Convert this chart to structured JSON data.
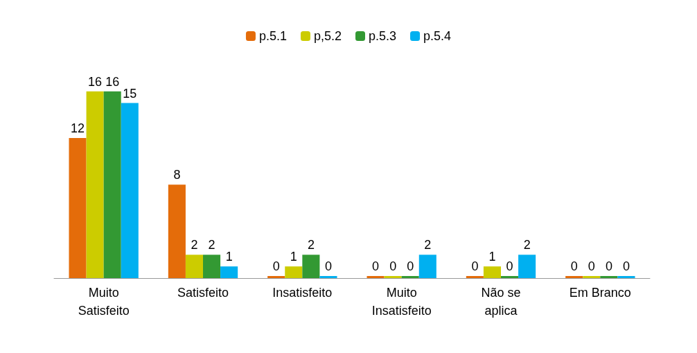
{
  "chart_data": {
    "type": "bar",
    "categories": [
      "Muito\nSatisfeito",
      "Satisfeito",
      "Insatisfeito",
      "Muito\nInsatisfeito",
      "Não se\naplica",
      "Em Branco"
    ],
    "series": [
      {
        "name": "p.5.1",
        "color": "#e46c0a",
        "values": [
          12,
          8,
          0,
          0,
          0,
          0
        ]
      },
      {
        "name": "p,5.2",
        "color": "#cccc00",
        "values": [
          16,
          2,
          1,
          0,
          1,
          0
        ]
      },
      {
        "name": "p.5.3",
        "color": "#339933",
        "values": [
          16,
          2,
          2,
          0,
          0,
          0
        ]
      },
      {
        "name": "p.5.4",
        "color": "#00b0f0",
        "values": [
          15,
          1,
          0,
          2,
          2,
          0
        ]
      }
    ],
    "data_labels": true,
    "legend": "top",
    "tick_labels": "x"
  }
}
